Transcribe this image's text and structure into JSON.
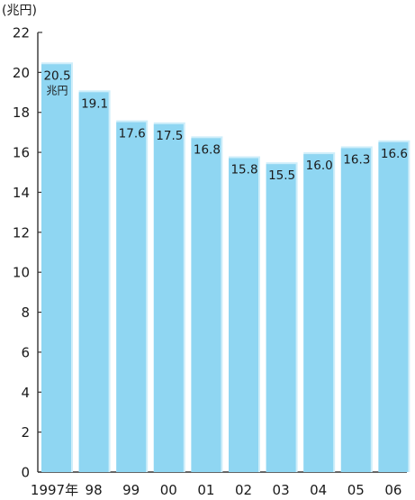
{
  "chart_data": {
    "type": "bar",
    "unit_label": "(兆円)",
    "categories": [
      "1997年",
      "98",
      "99",
      "00",
      "01",
      "02",
      "03",
      "04",
      "05",
      "06"
    ],
    "values": [
      20.5,
      19.1,
      17.6,
      17.5,
      16.8,
      15.8,
      15.5,
      16.0,
      16.3,
      16.6
    ],
    "data_labels": [
      "20.5",
      "19.1",
      "17.6",
      "17.5",
      "16.8",
      "15.8",
      "15.5",
      "16.0",
      "16.3",
      "16.6"
    ],
    "first_label_suffix": "兆円",
    "ylim": [
      0,
      22
    ],
    "yticks": [
      0,
      2,
      4,
      6,
      8,
      10,
      12,
      14,
      16,
      18,
      20,
      22
    ],
    "bar_color": "#8fd6f2",
    "bar_shadow_color": "#cfeefa",
    "axis_color": "#333333",
    "grid": false,
    "legend": "none"
  }
}
